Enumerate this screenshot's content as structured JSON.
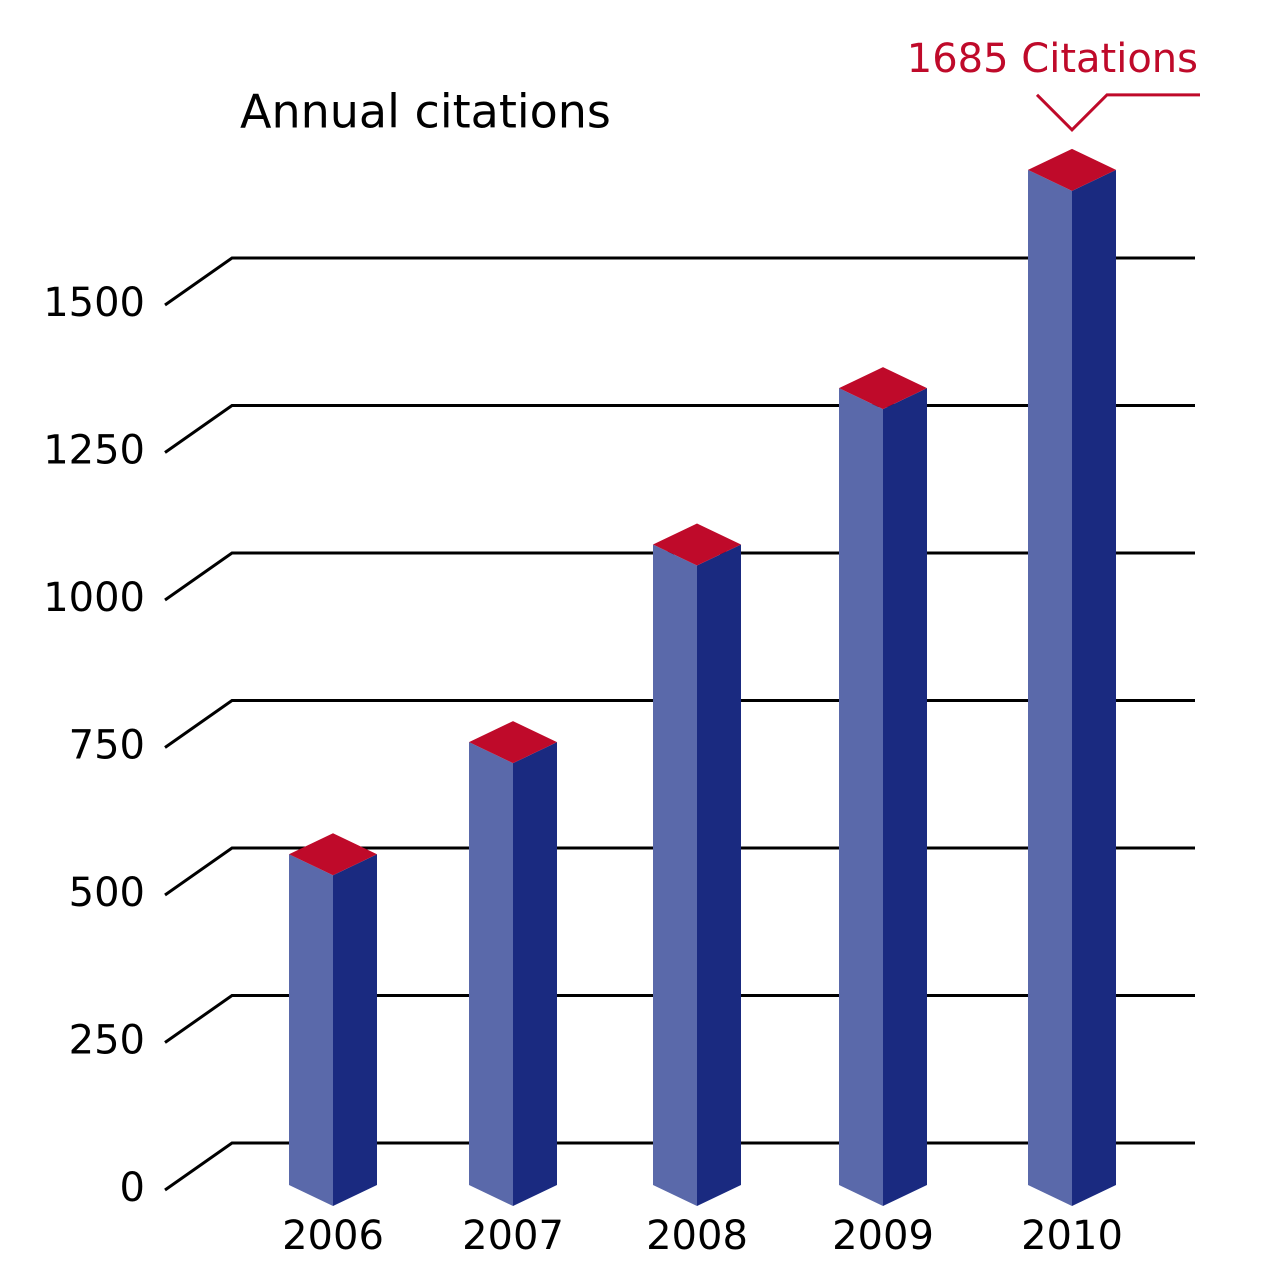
{
  "chart_data": {
    "type": "bar3d",
    "title": "Annual citations",
    "categories": [
      "2006",
      "2007",
      "2008",
      "2009",
      "2010"
    ],
    "values": [
      525,
      715,
      1050,
      1315,
      1685
    ],
    "colors": {
      "left": "#5a69aa",
      "right": "#1a2a80",
      "top": "#bf0a2a"
    },
    "annotation": "1685 Citations",
    "annotation_color": "#bf0a2a",
    "ylim": [
      0,
      1500
    ],
    "yticks": [
      0,
      250,
      500,
      750,
      1000,
      1250,
      1500
    ],
    "grid": true
  }
}
